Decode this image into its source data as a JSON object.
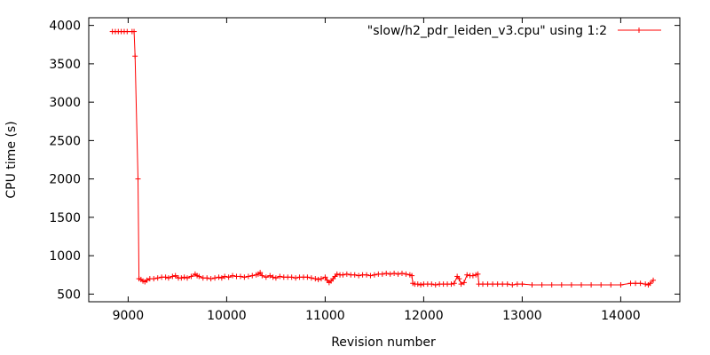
{
  "chart_data": {
    "type": "line",
    "title": "",
    "xlabel": "Revision number",
    "ylabel": "CPU time (s)",
    "xlim": [
      8600,
      14600
    ],
    "ylim": [
      400,
      4100
    ],
    "xticks": [
      9000,
      10000,
      11000,
      12000,
      13000,
      14000
    ],
    "yticks": [
      500,
      1000,
      1500,
      2000,
      2500,
      3000,
      3500,
      4000
    ],
    "grid": false,
    "legend_position": "top-right",
    "series": [
      {
        "name": "\"slow/h2_pdr_leiden_v3.cpu\" using 1:2",
        "color": "#ff0000",
        "marker": "plus",
        "points": [
          [
            8840,
            3920
          ],
          [
            8870,
            3920
          ],
          [
            8900,
            3920
          ],
          [
            8930,
            3920
          ],
          [
            8960,
            3920
          ],
          [
            8990,
            3920
          ],
          [
            9040,
            3920
          ],
          [
            9060,
            3920
          ],
          [
            9070,
            3600
          ],
          [
            9100,
            2000
          ],
          [
            9110,
            700
          ],
          [
            9130,
            690
          ],
          [
            9150,
            670
          ],
          [
            9170,
            660
          ],
          [
            9190,
            680
          ],
          [
            9220,
            700
          ],
          [
            9260,
            700
          ],
          [
            9300,
            710
          ],
          [
            9340,
            720
          ],
          [
            9380,
            720
          ],
          [
            9410,
            710
          ],
          [
            9450,
            730
          ],
          [
            9480,
            740
          ],
          [
            9510,
            710
          ],
          [
            9540,
            710
          ],
          [
            9570,
            720
          ],
          [
            9600,
            710
          ],
          [
            9640,
            730
          ],
          [
            9680,
            760
          ],
          [
            9700,
            740
          ],
          [
            9720,
            730
          ],
          [
            9760,
            710
          ],
          [
            9800,
            710
          ],
          [
            9840,
            700
          ],
          [
            9880,
            710
          ],
          [
            9920,
            720
          ],
          [
            9950,
            710
          ],
          [
            9980,
            730
          ],
          [
            10020,
            720
          ],
          [
            10060,
            740
          ],
          [
            10100,
            730
          ],
          [
            10140,
            730
          ],
          [
            10180,
            720
          ],
          [
            10220,
            730
          ],
          [
            10260,
            740
          ],
          [
            10300,
            750
          ],
          [
            10320,
            760
          ],
          [
            10340,
            780
          ],
          [
            10360,
            740
          ],
          [
            10400,
            720
          ],
          [
            10440,
            740
          ],
          [
            10470,
            720
          ],
          [
            10500,
            710
          ],
          [
            10540,
            730
          ],
          [
            10580,
            720
          ],
          [
            10620,
            720
          ],
          [
            10660,
            720
          ],
          [
            10700,
            710
          ],
          [
            10740,
            720
          ],
          [
            10780,
            720
          ],
          [
            10820,
            720
          ],
          [
            10860,
            710
          ],
          [
            10900,
            700
          ],
          [
            10930,
            690
          ],
          [
            10960,
            700
          ],
          [
            11000,
            720
          ],
          [
            11020,
            680
          ],
          [
            11040,
            650
          ],
          [
            11060,
            670
          ],
          [
            11080,
            700
          ],
          [
            11100,
            730
          ],
          [
            11120,
            760
          ],
          [
            11150,
            750
          ],
          [
            11180,
            750
          ],
          [
            11220,
            760
          ],
          [
            11260,
            750
          ],
          [
            11300,
            750
          ],
          [
            11340,
            740
          ],
          [
            11380,
            750
          ],
          [
            11420,
            750
          ],
          [
            11460,
            740
          ],
          [
            11500,
            750
          ],
          [
            11540,
            760
          ],
          [
            11580,
            760
          ],
          [
            11620,
            770
          ],
          [
            11660,
            760
          ],
          [
            11700,
            770
          ],
          [
            11740,
            760
          ],
          [
            11780,
            770
          ],
          [
            11820,
            760
          ],
          [
            11860,
            750
          ],
          [
            11880,
            740
          ],
          [
            11890,
            640
          ],
          [
            11910,
            630
          ],
          [
            11940,
            630
          ],
          [
            11970,
            620
          ],
          [
            12000,
            630
          ],
          [
            12040,
            630
          ],
          [
            12080,
            630
          ],
          [
            12120,
            620
          ],
          [
            12160,
            630
          ],
          [
            12200,
            630
          ],
          [
            12240,
            630
          ],
          [
            12280,
            630
          ],
          [
            12310,
            640
          ],
          [
            12340,
            730
          ],
          [
            12360,
            700
          ],
          [
            12380,
            630
          ],
          [
            12410,
            650
          ],
          [
            12440,
            750
          ],
          [
            12470,
            740
          ],
          [
            12500,
            740
          ],
          [
            12530,
            750
          ],
          [
            12550,
            760
          ],
          [
            12560,
            630
          ],
          [
            12600,
            630
          ],
          [
            12650,
            630
          ],
          [
            12700,
            630
          ],
          [
            12750,
            630
          ],
          [
            12800,
            630
          ],
          [
            12850,
            630
          ],
          [
            12900,
            620
          ],
          [
            12950,
            630
          ],
          [
            13000,
            630
          ],
          [
            13100,
            620
          ],
          [
            13200,
            620
          ],
          [
            13300,
            620
          ],
          [
            13400,
            620
          ],
          [
            13500,
            620
          ],
          [
            13600,
            620
          ],
          [
            13700,
            620
          ],
          [
            13800,
            620
          ],
          [
            13900,
            620
          ],
          [
            14000,
            620
          ],
          [
            14100,
            640
          ],
          [
            14150,
            640
          ],
          [
            14200,
            640
          ],
          [
            14250,
            630
          ],
          [
            14280,
            620
          ],
          [
            14300,
            640
          ],
          [
            14330,
            680
          ]
        ]
      }
    ]
  }
}
